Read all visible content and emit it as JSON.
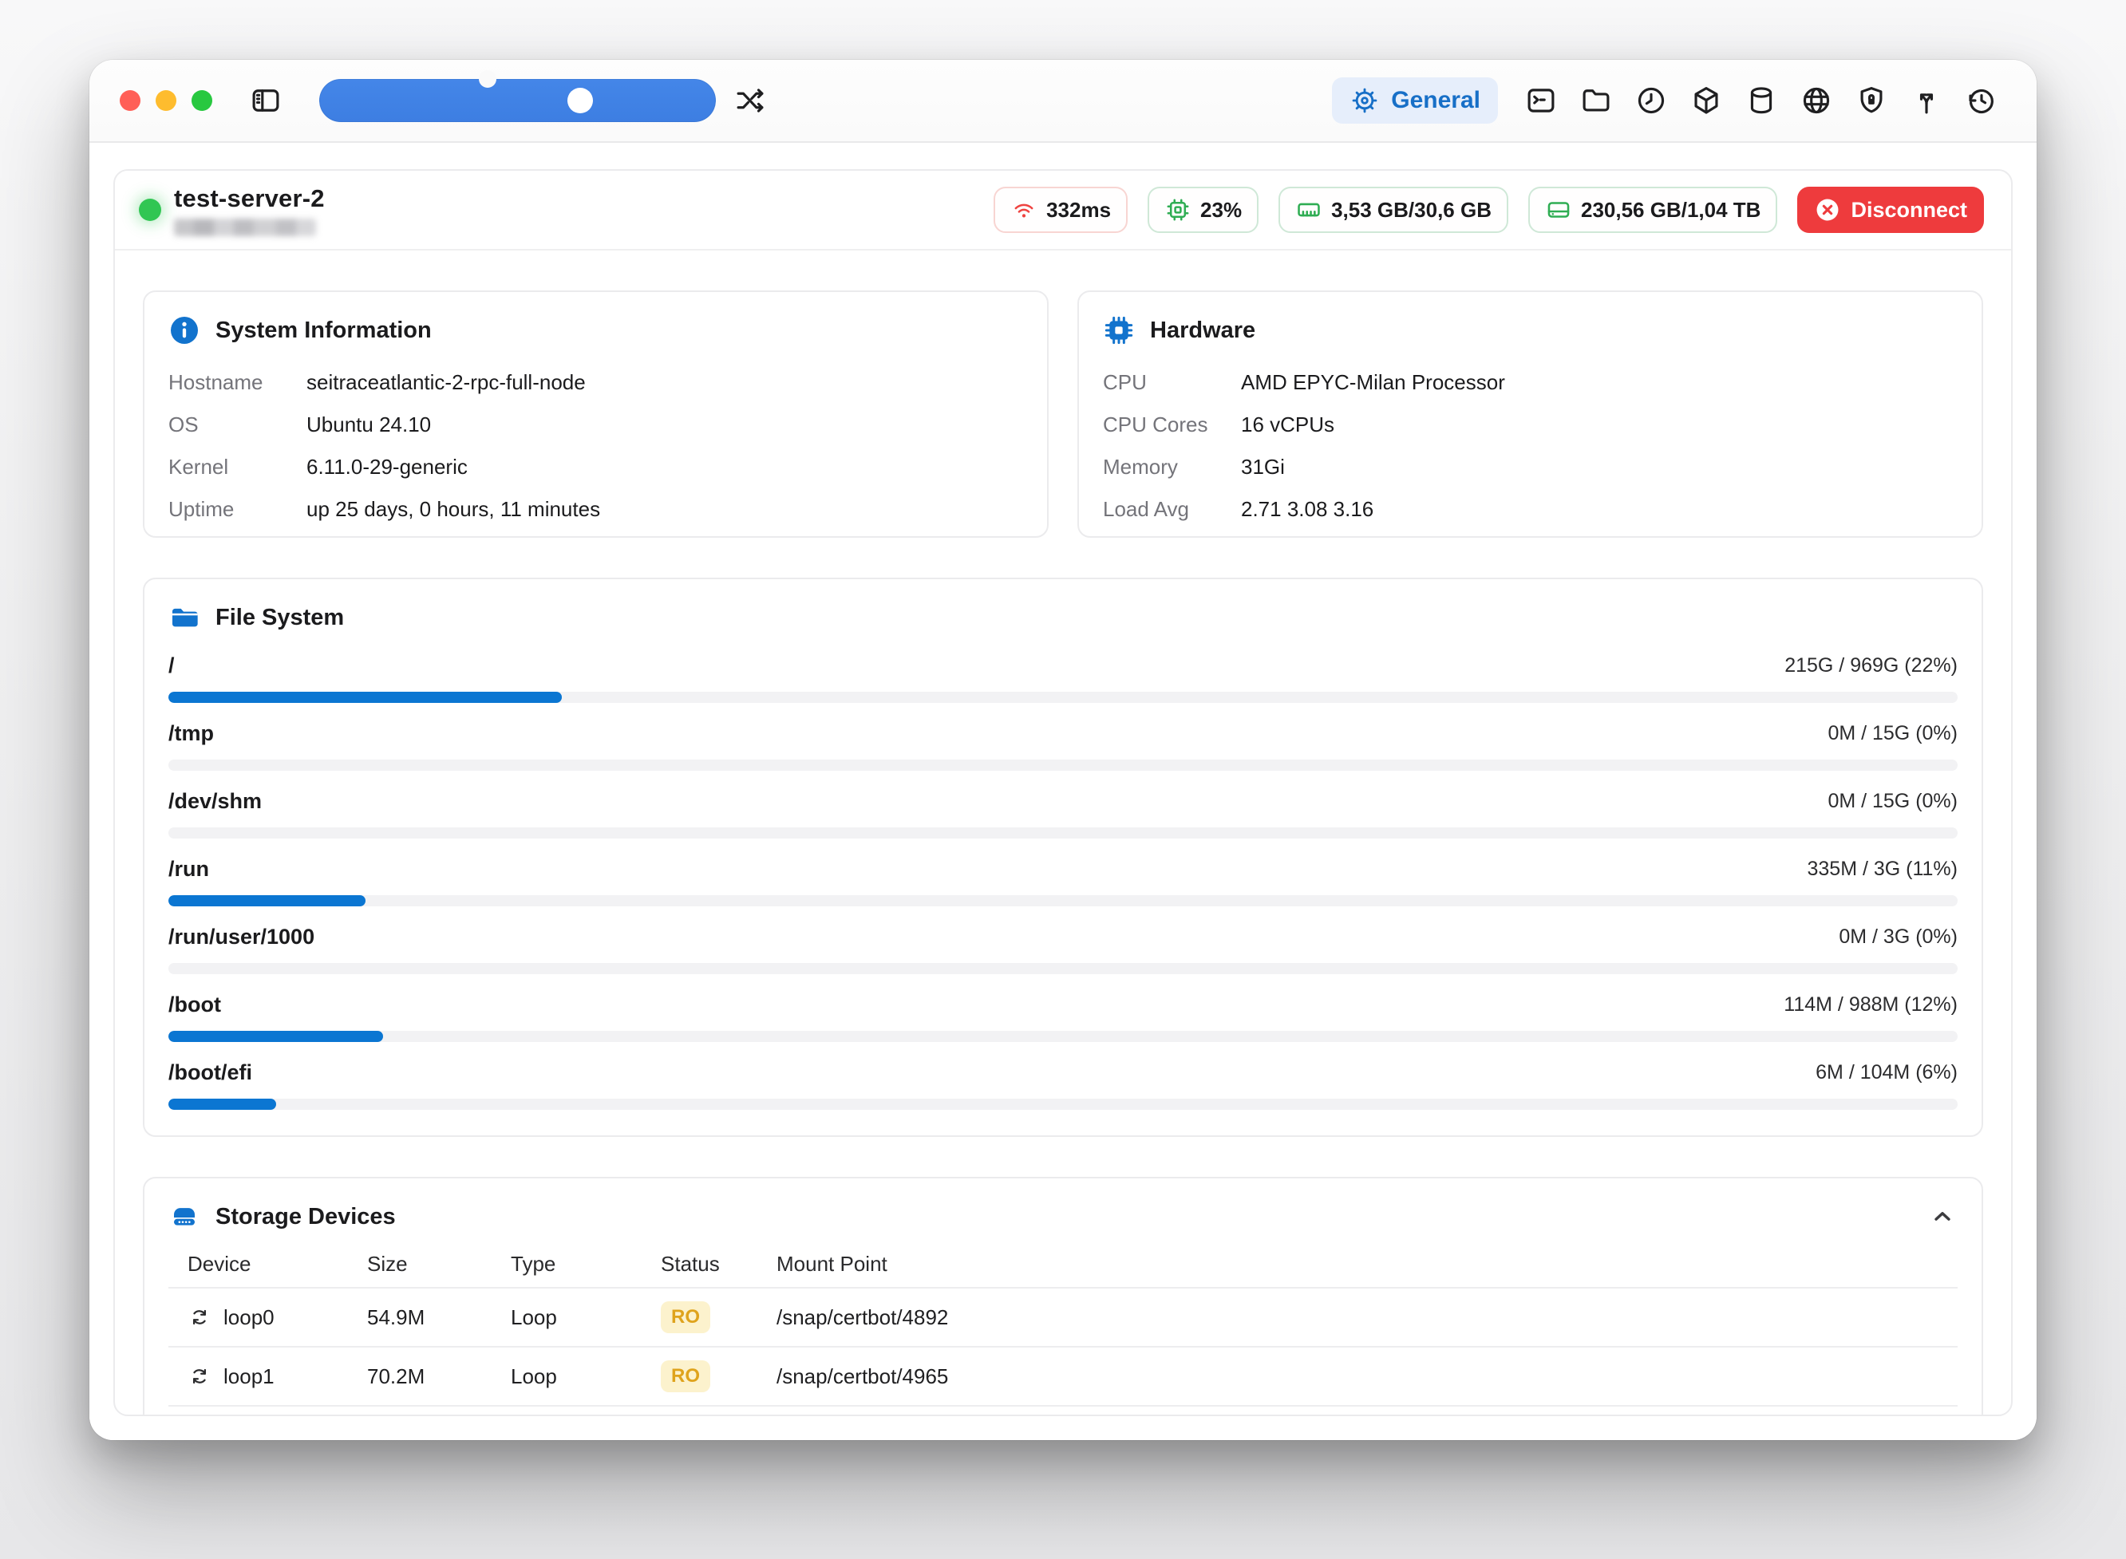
{
  "colors": {
    "accent_blue": "#0b76d2",
    "tab_blue": "#176fc7",
    "slider_blue": "#3f82e4",
    "status_green": "#31c653",
    "badge_green": "#2fad53",
    "badge_red": "#ef4340",
    "disconnect_red": "#ee3b3d",
    "ro_yellow_bg": "#fcf2cd",
    "ro_yellow_text": "#dfa31c"
  },
  "titlebar": {
    "traffic_lights": [
      "close",
      "minimize",
      "zoom"
    ],
    "left_icons": [
      "sidebar-toggle-icon",
      "shuffle-icon"
    ],
    "active_tab": {
      "label": "General",
      "icon": "gear-icon"
    },
    "tab_icons": [
      "terminal-icon",
      "folder-icon",
      "clock-icon",
      "package-icon",
      "database-icon",
      "globe-icon",
      "shield-lock-icon",
      "split-icon",
      "history-icon"
    ]
  },
  "server": {
    "name": "test-server-2",
    "status": "online",
    "address_redacted": true,
    "ping": "332ms",
    "cpu_usage": "23%",
    "memory_usage": "3,53 GB/30,6 GB",
    "disk_usage": "230,56 GB/1,04 TB",
    "disconnect_label": "Disconnect"
  },
  "system_info": {
    "title": "System Information",
    "icon": "info-icon",
    "rows": [
      {
        "label": "Hostname",
        "value": "seitraceatlantic-2-rpc-full-node"
      },
      {
        "label": "OS",
        "value": "Ubuntu 24.10"
      },
      {
        "label": "Kernel",
        "value": "6.11.0-29-generic"
      },
      {
        "label": "Uptime",
        "value": "up 25 days, 0 hours, 11 minutes"
      }
    ]
  },
  "hardware": {
    "title": "Hardware",
    "icon": "chip-icon",
    "rows": [
      {
        "label": "CPU",
        "value": "AMD EPYC-Milan Processor"
      },
      {
        "label": "CPU Cores",
        "value": "16 vCPUs"
      },
      {
        "label": "Memory",
        "value": "31Gi"
      },
      {
        "label": "Load Avg",
        "value": "2.71 3.08 3.16"
      }
    ]
  },
  "filesystem": {
    "title": "File System",
    "icon": "folder-fill-icon",
    "mounts": [
      {
        "path": "/",
        "usage": "215G / 969G (22%)",
        "percent": 22
      },
      {
        "path": "/tmp",
        "usage": "0M / 15G (0%)",
        "percent": 0
      },
      {
        "path": "/dev/shm",
        "usage": "0M / 15G (0%)",
        "percent": 0
      },
      {
        "path": "/run",
        "usage": "335M / 3G (11%)",
        "percent": 11
      },
      {
        "path": "/run/user/1000",
        "usage": "0M / 3G (0%)",
        "percent": 0
      },
      {
        "path": "/boot",
        "usage": "114M / 988M (12%)",
        "percent": 12
      },
      {
        "path": "/boot/efi",
        "usage": "6M / 104M (6%)",
        "percent": 6
      }
    ]
  },
  "storage": {
    "title": "Storage Devices",
    "icon": "drive-icon",
    "columns": [
      "Device",
      "Size",
      "Type",
      "Status",
      "Mount Point"
    ],
    "rows": [
      {
        "device": "loop0",
        "size": "54.9M",
        "type": "Loop",
        "status": "RO",
        "mount": "/snap/certbot/4892"
      },
      {
        "device": "loop1",
        "size": "70.2M",
        "type": "Loop",
        "status": "RO",
        "mount": "/snap/certbot/4965"
      }
    ]
  }
}
